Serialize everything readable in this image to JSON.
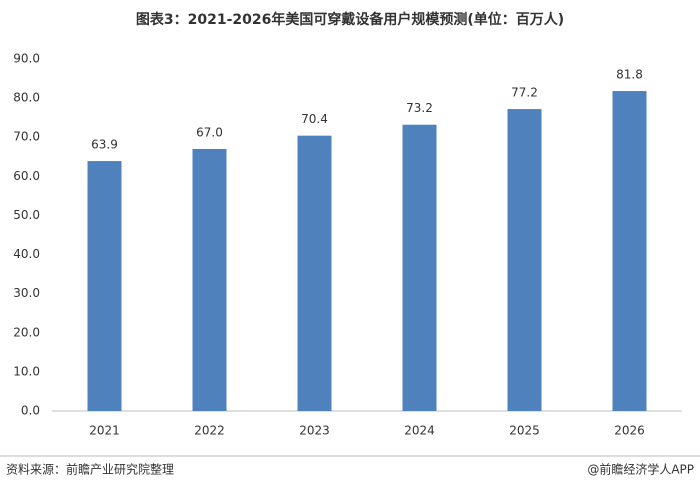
{
  "chart_data": {
    "type": "bar",
    "title": "图表3：2021-2026年美国可穿戴设备用户规模预测(单位：百万人)",
    "categories": [
      "2021",
      "2022",
      "2023",
      "2024",
      "2025",
      "2026"
    ],
    "values": [
      63.9,
      67.0,
      70.4,
      73.2,
      77.2,
      81.8
    ],
    "value_labels": [
      "63.9",
      "67.0",
      "70.4",
      "73.2",
      "77.2",
      "81.8"
    ],
    "color": "#4f81bd",
    "ylim": [
      0,
      90
    ],
    "yticks": [
      {
        "value": 0,
        "label": "0.0"
      },
      {
        "value": 10,
        "label": "10.0"
      },
      {
        "value": 20,
        "label": "20.0"
      },
      {
        "value": 30,
        "label": "30.0"
      },
      {
        "value": 40,
        "label": "40.0"
      },
      {
        "value": 50,
        "label": "50.0"
      },
      {
        "value": 60,
        "label": "60.0"
      },
      {
        "value": 70,
        "label": "70.0"
      },
      {
        "value": 80,
        "label": "80.0"
      },
      {
        "value": 90,
        "label": "90.0"
      }
    ],
    "grid": false,
    "source": "资料来源：前瞻产业研究院整理",
    "credit": "@前瞻经济学人APP"
  }
}
